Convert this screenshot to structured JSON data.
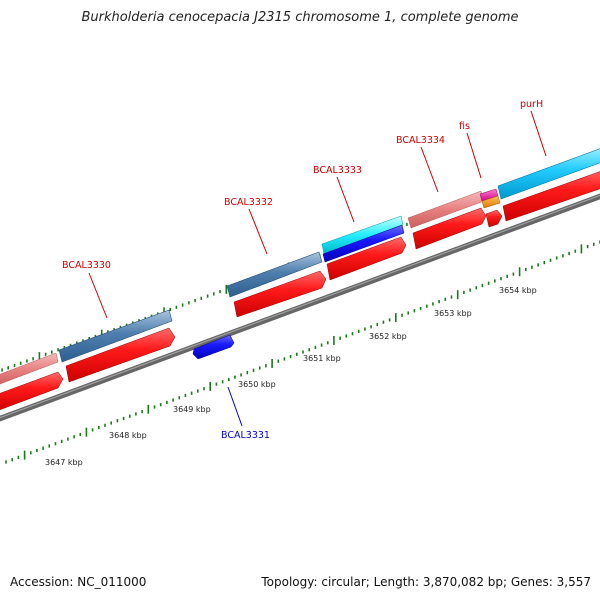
{
  "title": "Burkholderia cenocepacia J2315 chromosome 1, complete genome",
  "accession": "Accession: NC_011000",
  "topology": "Topology: circular; Length: 3,870,082 bp; Genes: 3,557",
  "colors": {
    "forward_label": "#cc0000",
    "reverse_label": "#0000cc",
    "backbone": "#666666",
    "tick": "#1a7a1a"
  },
  "scale_labels": [
    "3647 kbp",
    "3648 kbp",
    "3649 kbp",
    "3650 kbp",
    "3651 kbp",
    "3652 kbp",
    "3653 kbp",
    "3654 kbp"
  ],
  "genes": [
    {
      "name": "BCAL3330",
      "strand": "+"
    },
    {
      "name": "BCAL3331",
      "strand": "-"
    },
    {
      "name": "BCAL3332",
      "strand": "+"
    },
    {
      "name": "BCAL3333",
      "strand": "+"
    },
    {
      "name": "BCAL3334",
      "strand": "+"
    },
    {
      "name": "fis",
      "strand": "+"
    },
    {
      "name": "purH",
      "strand": "+"
    }
  ]
}
